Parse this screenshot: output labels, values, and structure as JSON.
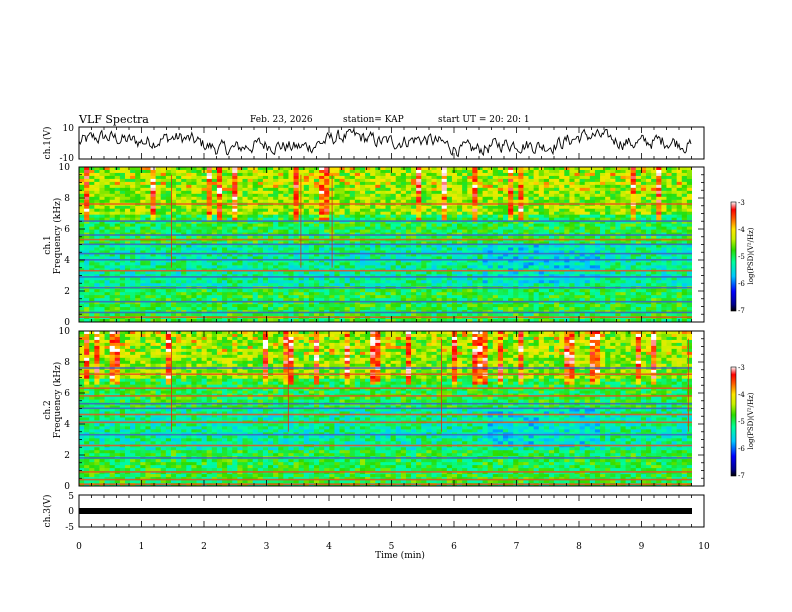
{
  "header": {
    "title": "VLF Spectra",
    "date": "Feb. 23, 2026",
    "station": "station= KAP",
    "start_time": "start  UT =   20: 20: 1"
  },
  "colors": {
    "trace": "#000000",
    "frame": "#000000",
    "background": "#ffffff"
  },
  "chart_data": [
    {
      "type": "line",
      "panel": "ch1-waveform",
      "ylabel": "ch.1(V)",
      "ylim": [
        -10,
        10
      ],
      "yticks": [
        "10",
        "-10"
      ],
      "xlim": [
        0,
        9.85
      ],
      "description_series": "noisy oscillating amplitude around 0 V"
    },
    {
      "type": "heatmap",
      "panel": "ch1-spectrogram",
      "ylabel": "ch.1\nFrequency (kHz)",
      "ylabel_line1": "ch.1",
      "ylabel_line2": "Frequency (kHz)",
      "ylim": [
        0,
        10
      ],
      "yticks": [
        "0",
        "2",
        "4",
        "6",
        "8",
        "10"
      ],
      "xlim": [
        0,
        9.85
      ],
      "colorbar": {
        "label": "log(PSD)(V²/Hz)",
        "range": [
          -7,
          -3
        ],
        "ticks": [
          "-3",
          "-4",
          "-5",
          "-6",
          "-7"
        ]
      },
      "bands_khz": [
        0.3,
        0.6,
        1.3,
        2.2,
        2.9,
        3.3,
        4.0,
        4.4,
        5.0,
        5.3,
        5.6,
        6.5,
        7.6
      ]
    },
    {
      "type": "heatmap",
      "panel": "ch2-spectrogram",
      "ylabel_line1": "ch.2",
      "ylabel_line2": "Frequency (kHz)",
      "ylim": [
        0,
        10
      ],
      "yticks": [
        "0",
        "2",
        "4",
        "6",
        "8",
        "10"
      ],
      "xlim": [
        0,
        9.85
      ],
      "colorbar": {
        "label": "log(PSD)(V²/Hz)",
        "range": [
          -7,
          -3
        ],
        "ticks": [
          "-3",
          "-4",
          "-5",
          "-6",
          "-7"
        ]
      },
      "bands_khz": [
        0.1,
        0.4,
        0.9,
        1.8,
        2.6,
        3.3,
        4.1,
        4.6,
        5.0,
        5.3,
        5.8,
        6.3,
        7.2,
        7.6
      ]
    },
    {
      "type": "line",
      "panel": "ch3-waveform",
      "ylabel": "ch.3(V)",
      "ylim": [
        -5,
        5
      ],
      "yticks": [
        "5",
        "0",
        "-5"
      ],
      "xlim": [
        0,
        9.85
      ],
      "level_v": 0,
      "xlabel": "Time  (min)",
      "xticks": [
        "0",
        "1",
        "2",
        "3",
        "4",
        "5",
        "6",
        "7",
        "8",
        "9",
        "10"
      ]
    }
  ]
}
